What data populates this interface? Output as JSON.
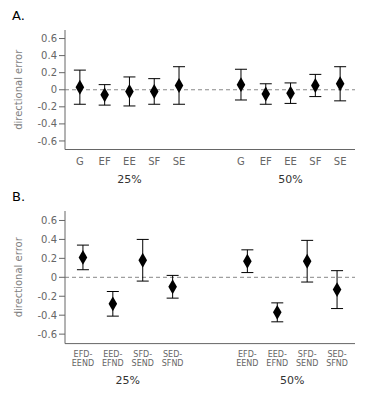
{
  "chart_data": [
    {
      "type": "scatter",
      "title": "A.",
      "ylabel": "directional error",
      "marker": "diamond",
      "color": "black",
      "ylim": [
        -0.7,
        0.7
      ],
      "yticks": [
        -0.6,
        -0.4,
        -0.2,
        0.0,
        0.2,
        0.4,
        0.6
      ],
      "reference_lines": [
        {
          "y": 0,
          "color": "#888888",
          "line_style": "dashed"
        }
      ],
      "groups": [
        {
          "label": "25%",
          "categories": [
            "G",
            "EF",
            "EE",
            "SF",
            "SE"
          ],
          "values": [
            0.03,
            -0.06,
            -0.02,
            -0.02,
            0.05
          ],
          "errors": [
            0.2,
            0.12,
            0.17,
            0.15,
            0.22
          ]
        },
        {
          "label": "50%",
          "categories": [
            "G",
            "EF",
            "EE",
            "SF",
            "SE"
          ],
          "values": [
            0.06,
            -0.05,
            -0.04,
            0.05,
            0.07
          ],
          "errors": [
            0.18,
            0.12,
            0.12,
            0.13,
            0.2
          ]
        }
      ]
    },
    {
      "type": "scatter",
      "title": "B.",
      "ylabel": "directional error",
      "marker": "diamond",
      "color": "black",
      "ylim": [
        -0.7,
        0.7
      ],
      "yticks": [
        -0.6,
        -0.4,
        -0.2,
        0.0,
        0.2,
        0.4,
        0.6
      ],
      "reference_lines": [
        {
          "y": 0,
          "color": "#888888",
          "line_style": "dashed"
        }
      ],
      "groups": [
        {
          "label": "25%",
          "categories": [
            "EFD-\nEEND",
            "EED-\nEFND",
            "SFD-\nSEND",
            "SED-\nSFND"
          ],
          "values": [
            0.21,
            -0.28,
            0.18,
            -0.1
          ],
          "errors": [
            0.13,
            0.13,
            0.22,
            0.12
          ]
        },
        {
          "label": "50%",
          "categories": [
            "EFD-\nEEND",
            "EED-\nEFND",
            "SFD-\nSEND",
            "SED-\nSFND"
          ],
          "values": [
            0.17,
            -0.37,
            0.17,
            -0.13
          ],
          "errors": [
            0.12,
            0.1,
            0.22,
            0.2
          ]
        }
      ]
    }
  ]
}
